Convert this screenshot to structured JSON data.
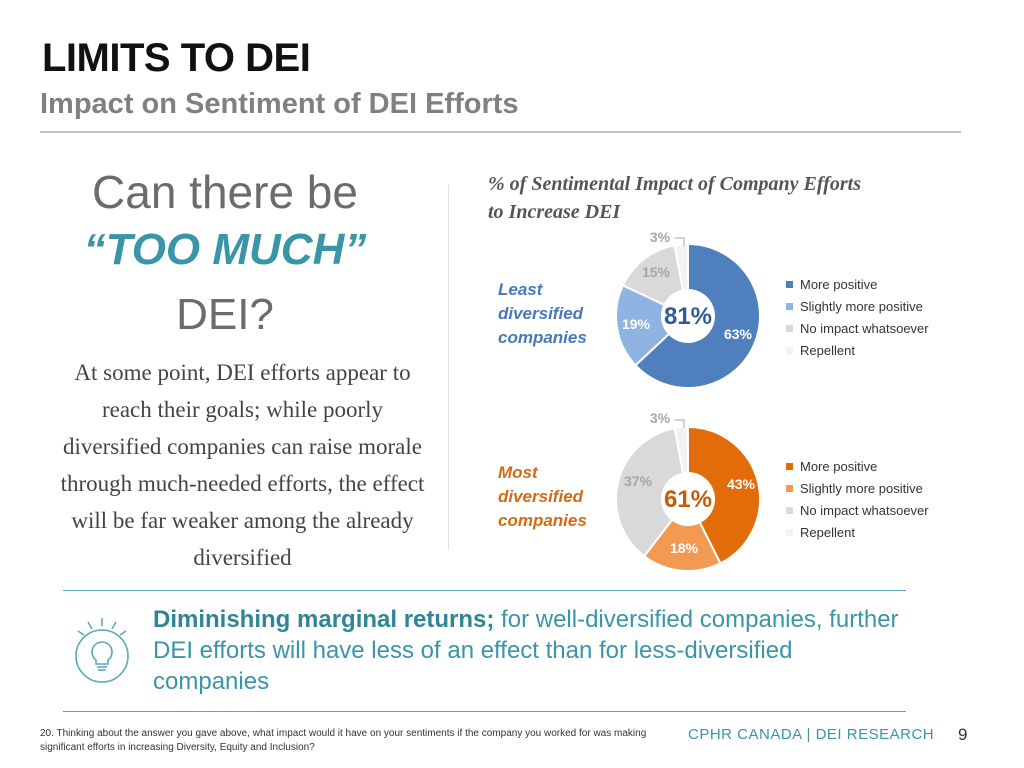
{
  "slide": {
    "title": "LIMITS TO DEI",
    "subtitle": "Impact on Sentiment of DEI Efforts"
  },
  "left": {
    "q_line1": "Can there be",
    "q_line2": "“TOO MUCH”",
    "q_line3": "DEI?",
    "body": "At some point, DEI efforts appear to reach their goals; while poorly diversified companies can raise morale through much-needed efforts, the effect will be far weaker among the already diversified"
  },
  "chart_data": [
    {
      "type": "pie",
      "title": "% of Sentimental Impact of Company Efforts to Increase DEI",
      "group_label": "Least diversified companies",
      "center_label": "81%",
      "categories": [
        "More positive",
        "Slightly more positive",
        "No impact whatsoever",
        "Repellent"
      ],
      "values": [
        63,
        19,
        15,
        3
      ],
      "labels": [
        "63%",
        "19%",
        "15%",
        "3%"
      ],
      "colors": [
        "#4f7fbd",
        "#8fb3e3",
        "#d9d9d9",
        "#f2f2f2"
      ]
    },
    {
      "type": "pie",
      "group_label": "Most diversified companies",
      "center_label": "61%",
      "categories": [
        "More positive",
        "Slightly more positive",
        "No impact whatsoever",
        "Repellent"
      ],
      "values": [
        43,
        18,
        37,
        3
      ],
      "labels": [
        "43%",
        "18%",
        "37%",
        "3%"
      ],
      "colors": [
        "#e36c0a",
        "#f29a52",
        "#d9d9d9",
        "#f2f2f2"
      ]
    }
  ],
  "chart": {
    "title": "% of Sentimental Impact of Company Efforts to Increase DEI",
    "least_label": "Least\ndiversified\ncompanies",
    "most_label": "Most\ndiversified\ncompanies"
  },
  "legend": {
    "items": [
      "More positive",
      "Slightly more positive",
      "No impact whatsoever",
      "Repellent"
    ]
  },
  "insight": {
    "bold": "Diminishing marginal returns;",
    "rest": " for well-diversified companies, further DEI efforts will have less of an effect than for less-diversified companies"
  },
  "footer": {
    "footnote": "20. Thinking about the answer you gave above, what impact would it have on your sentiments if the company you worked for was making significant efforts in increasing Diversity, Equity and Inclusion?",
    "brand": "CPHR CANADA | DEI RESEARCH",
    "page": "9"
  },
  "colors": {
    "accent_teal": "#3a95a8",
    "blue": "#4f7fbd",
    "light_blue": "#8fb3e3",
    "orange": "#e36c0a",
    "light_orange": "#f29a52",
    "grey": "#d9d9d9",
    "very_light_grey": "#f2f2f2"
  },
  "icons": {
    "insight": "lightbulb-icon"
  }
}
